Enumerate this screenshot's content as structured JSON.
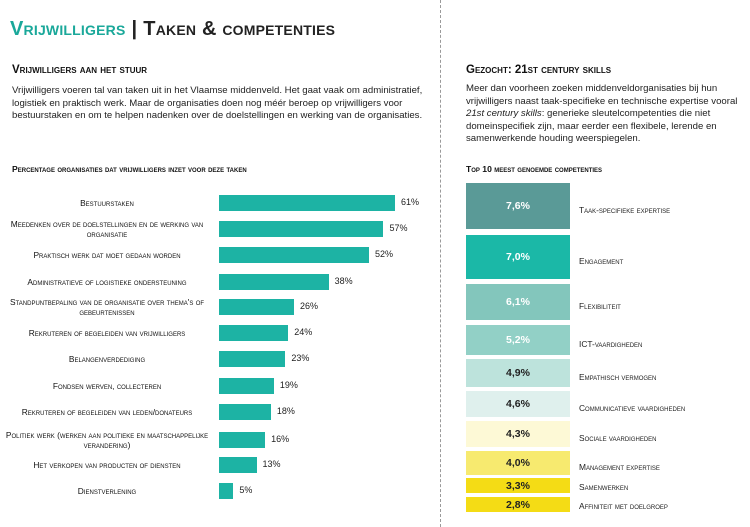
{
  "header": {
    "title_accent": "Vrijwilligers",
    "title_sep": "|",
    "title_rest": "Taken &  competenties"
  },
  "left": {
    "subtitle": "Vrijwilligers aan het stuur",
    "paragraph": "Vrijwilligers voeren tal van taken uit in het Vlaamse middenveld. Het gaat vaak om administratief, logistiek en praktisch werk. Maar de organisaties doen nog méér beroep op vrijwilligers voor bestuurstaken en om te helpen nadenken over de doelstellingen en werking van de organisaties."
  },
  "right": {
    "subtitle": "Gezocht: 21st century skills",
    "para_before": "Meer dan voorheen zoeken middenveldorganisaties bij hun vrijwilligers naast taak-specifieke en technische expertise vooral ",
    "para_em": "21st century skills",
    "para_after": ": generieke sleutelcompetenties die niet domeinspecifiek zijn, maar eerder een flexibele, lerende en samenwerkende houding weerspiegelen."
  },
  "chart_data": [
    {
      "type": "bar",
      "orientation": "horizontal",
      "title": "Percentage organisaties dat vrijwilligers inzet voor deze taken",
      "categories": [
        "Bestuurstaken",
        "Meedenken over de doelstellingen en de werking van organisatie",
        "Praktisch werk dat moet gedaan worden",
        "Administratieve of logistieke ondersteuning",
        "Standpuntbepaling van de organisatie over thema's of gebeurtenissen",
        "Rekruteren of begeleiden van vrijwilligers",
        "Belangenverdediging",
        "Fondsen werven, collecteren",
        "Rekruteren of begeleiden van leden/donateurs",
        "Politiek werk (werken aan politieke en maatschappelijke verandering)",
        "Het verkopen van producten of diensten",
        "Dienstverlening"
      ],
      "values": [
        61,
        57,
        52,
        38,
        26,
        24,
        23,
        19,
        18,
        16,
        13,
        5
      ],
      "value_labels": [
        "61%",
        "57%",
        "52%",
        "38%",
        "26%",
        "24%",
        "23%",
        "19%",
        "18%",
        "16%",
        "13%",
        "5%"
      ],
      "xlim": [
        0,
        61
      ],
      "bar_color": "#1db3a4"
    },
    {
      "type": "table",
      "title": "Top 10 meest genoemde competenties",
      "categories": [
        "Taak-specifieke expertise",
        "Engagement",
        "Flexibiliteit",
        "ICT-vaardigheden",
        "Empathisch vermogen",
        "Communicatieve vaardigheden",
        "Sociale vaardigheden",
        "Management expertise",
        "Samenwerken",
        "Affiniteit met doelgroep"
      ],
      "values": [
        7.6,
        7.0,
        6.1,
        5.2,
        4.9,
        4.6,
        4.3,
        4.0,
        3.3,
        2.8
      ],
      "value_labels": [
        "7,6%",
        "7,0%",
        "6,1%",
        "5,2%",
        "4,9%",
        "4,6%",
        "4,3%",
        "4,0%",
        "3,3%",
        "2,8%"
      ],
      "colors": [
        "#5a9a97",
        "#1bb8a7",
        "#83c6bc",
        "#92d0c6",
        "#bde3dc",
        "#dff0ed",
        "#fdf9d6",
        "#f7ea6f",
        "#f4dc15",
        "#f4dc15"
      ],
      "text_colors": [
        "#ffffff",
        "#ffffff",
        "#ffffff",
        "#ffffff",
        "#222222",
        "#222222",
        "#222222",
        "#222222",
        "#222222",
        "#222222"
      ]
    }
  ]
}
